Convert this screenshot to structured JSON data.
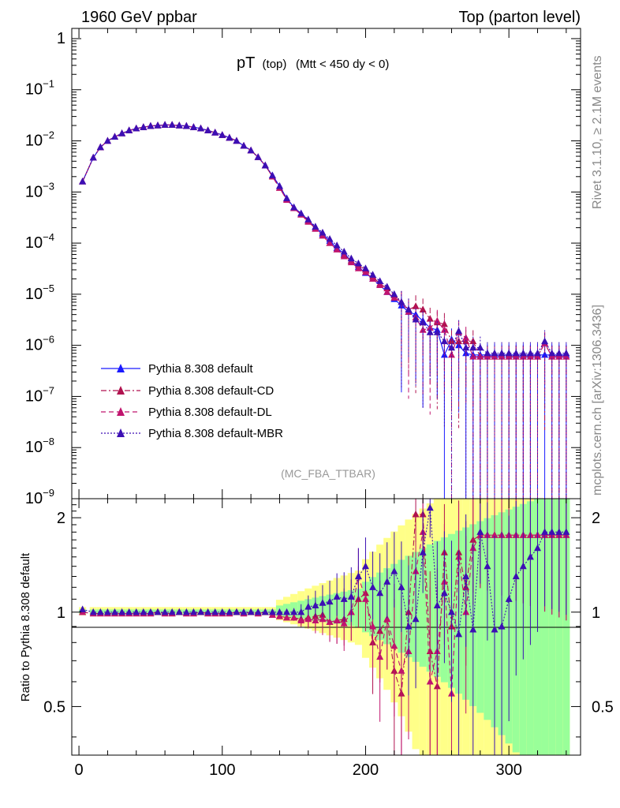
{
  "header": {
    "left": "1960 GeV ppbar",
    "right": "Top (parton level)"
  },
  "side_labels": {
    "rivet": "Rivet 3.1.10, ≥ 2.1M events",
    "mcplots": "mcplots.cern.ch [arXiv:1306.3436]"
  },
  "plot_title": {
    "main": "pT",
    "sub": "(top)",
    "cut": "(Mtt < 450 dy < 0)"
  },
  "watermark": "(MC_FBA_TTBAR)",
  "ratio_ylabel": "Ratio to Pythia 8.308 default",
  "colors": {
    "default": "#1a1aff",
    "cd": "#b0124f",
    "dl": "#c0146e",
    "mbr": "#3c0fb4",
    "band_green": "#99ff99",
    "band_yellow": "#ffff88"
  },
  "chart_data": [
    {
      "type": "line",
      "scale": "log",
      "xlim": [
        -5,
        350
      ],
      "ylim_exp": [
        -9,
        0.2
      ],
      "y_tick_exps": [
        0,
        -1,
        -2,
        -3,
        -4,
        -5,
        -6,
        -7,
        -8,
        -9
      ],
      "y_tick_labels": [
        "1",
        "10",
        "10",
        "10",
        "10",
        "10",
        "10",
        "10",
        "10",
        "10"
      ],
      "y_tick_supers": [
        "",
        "−1",
        "−2",
        "−3",
        "−4",
        "−5",
        "−6",
        "−7",
        "−8",
        "−9"
      ],
      "x": [
        2.5,
        10,
        15,
        20,
        25,
        30,
        35,
        40,
        45,
        50,
        55,
        60,
        65,
        70,
        75,
        80,
        85,
        90,
        95,
        100,
        105,
        110,
        115,
        120,
        125,
        130,
        135,
        140,
        145,
        150,
        155,
        160,
        165,
        170,
        175,
        180,
        185,
        190,
        195,
        200,
        205,
        210,
        215,
        220,
        225,
        230,
        235,
        240,
        245,
        250,
        255,
        260,
        265,
        270,
        275,
        280,
        285,
        290,
        295,
        300,
        305,
        310,
        315,
        320,
        325,
        330,
        335,
        340
      ],
      "series": [
        {
          "name": "Pythia 8.308 default",
          "key": "default",
          "dash": "",
          "values": [
            0.0016,
            0.0047,
            0.0075,
            0.01,
            0.012,
            0.014,
            0.016,
            0.0175,
            0.0185,
            0.0195,
            0.02,
            0.0205,
            0.0205,
            0.02,
            0.0195,
            0.0185,
            0.0175,
            0.016,
            0.0145,
            0.013,
            0.0115,
            0.01,
            0.008,
            0.0065,
            0.0048,
            0.0033,
            0.0021,
            0.0013,
            0.00075,
            0.0005,
            0.00038,
            0.00028,
            0.0002,
            0.00015,
            0.00011,
            8e-05,
            6.2e-05,
            4.5e-05,
            3.4e-05,
            2.6e-05,
            2e-05,
            1.5e-05,
            1.1e-05,
            8e-06,
            6e-06,
            4.5e-06,
            4e-06,
            3e-06,
            2.2e-06,
            2e-06,
            6.5e-07,
            1.3e-06,
            1e-06,
            7e-07,
            6.5e-07,
            6.5e-07,
            6.5e-07,
            6.5e-07,
            6.5e-07,
            6.5e-07,
            6.5e-07,
            6.5e-07,
            6.5e-07,
            6.5e-07,
            6.5e-07,
            6.5e-07,
            6.5e-07,
            6.5e-07
          ]
        },
        {
          "name": "Pythia 8.308 default-CD",
          "key": "cd",
          "dash": "7,3,2,3",
          "values": [
            0.0016,
            0.0047,
            0.0075,
            0.01,
            0.012,
            0.014,
            0.016,
            0.0175,
            0.0185,
            0.0195,
            0.02,
            0.0205,
            0.0205,
            0.02,
            0.0195,
            0.0185,
            0.0175,
            0.016,
            0.0145,
            0.013,
            0.0115,
            0.01,
            0.008,
            0.0065,
            0.0048,
            0.0033,
            0.002,
            0.0012,
            0.00072,
            0.00048,
            0.00036,
            0.00027,
            0.00019,
            0.00014,
            0.0001,
            7.5e-05,
            5.8e-05,
            4.5e-05,
            3.7e-05,
            3e-05,
            2.2e-05,
            1.6e-05,
            1.3e-05,
            9.5e-06,
            7e-06,
            5e-06,
            5.8e-06,
            5e-06,
            3.3e-06,
            2.8e-06,
            2.6e-06,
            1.2e-06,
            1.2e-06,
            1.2e-06,
            1.2e-06,
            6e-07,
            6e-07,
            6e-07,
            6e-07,
            6e-07,
            6e-07,
            6e-07,
            6e-07,
            6e-07,
            1.1e-06,
            6e-07,
            6e-07,
            6e-07
          ]
        },
        {
          "name": "Pythia 8.308 default-DL",
          "key": "dl",
          "dash": "6,4",
          "values": [
            0.0016,
            0.0047,
            0.0075,
            0.01,
            0.012,
            0.014,
            0.016,
            0.0175,
            0.0185,
            0.0195,
            0.02,
            0.0205,
            0.0205,
            0.02,
            0.0195,
            0.0185,
            0.0175,
            0.016,
            0.0145,
            0.013,
            0.0115,
            0.01,
            0.008,
            0.0065,
            0.0048,
            0.0033,
            0.002,
            0.0012,
            0.0007,
            0.00048,
            0.00036,
            0.00026,
            0.00019,
            0.00014,
            0.0001,
            7.5e-05,
            5.5e-05,
            4.2e-05,
            3.2e-05,
            2.7e-05,
            2e-05,
            1.5e-05,
            1.1e-05,
            8.5e-06,
            7e-06,
            4.5e-06,
            3.5e-06,
            2e-06,
            2.2e-06,
            3e-06,
            2e-06,
            6.5e-07,
            1.8e-06,
            1.4e-06,
            6e-07,
            6e-07,
            6e-07,
            6e-07,
            6e-07,
            6e-07,
            6e-07,
            6e-07,
            6e-07,
            6e-07,
            1.1e-06,
            6e-07,
            6e-07,
            6e-07
          ]
        },
        {
          "name": "Pythia 8.308 default-MBR",
          "key": "mbr",
          "dash": "2,2",
          "values": [
            0.0016,
            0.0047,
            0.0075,
            0.01,
            0.012,
            0.014,
            0.016,
            0.0175,
            0.0185,
            0.0195,
            0.02,
            0.0205,
            0.0205,
            0.02,
            0.0195,
            0.0185,
            0.0175,
            0.016,
            0.0145,
            0.013,
            0.0115,
            0.01,
            0.008,
            0.0065,
            0.0048,
            0.0033,
            0.0021,
            0.0013,
            0.00075,
            0.0005,
            0.00038,
            0.00029,
            0.00021,
            0.00016,
            0.00012,
            9e-05,
            6.8e-05,
            5e-05,
            4e-05,
            3.2e-05,
            2.4e-05,
            1.8e-05,
            1.4e-05,
            1e-05,
            7e-06,
            5e-06,
            3.2e-06,
            2.8e-06,
            1.8e-06,
            1.8e-06,
            1.2e-06,
            9e-07,
            1.9e-06,
            9e-07,
            9e-07,
            9e-07,
            7e-07,
            7e-07,
            7e-07,
            7e-07,
            7e-07,
            7e-07,
            7e-07,
            7e-07,
            1.2e-06,
            7e-07,
            7e-07,
            7e-07
          ]
        }
      ]
    },
    {
      "type": "line",
      "ylabel": "Ratio to Pythia 8.308 default",
      "xlim": [
        -5,
        350
      ],
      "ylim": [
        0.35,
        2.3
      ],
      "x_ticks": [
        0,
        100,
        200,
        300
      ],
      "y_ticks": [
        0.5,
        1,
        2
      ],
      "x": [
        2.5,
        10,
        15,
        20,
        25,
        30,
        35,
        40,
        45,
        50,
        55,
        60,
        65,
        70,
        75,
        80,
        85,
        90,
        95,
        100,
        105,
        110,
        115,
        120,
        125,
        130,
        135,
        140,
        145,
        150,
        155,
        160,
        165,
        170,
        175,
        180,
        185,
        190,
        195,
        200,
        205,
        210,
        215,
        220,
        225,
        230,
        235,
        240,
        245,
        250,
        255,
        260,
        265,
        270,
        275,
        280,
        285,
        290,
        295,
        300,
        305,
        310,
        315,
        320,
        325,
        330,
        335,
        340
      ],
      "series": [
        {
          "name": "Pythia 8.308 default-CD",
          "key": "cd",
          "values": [
            1.0,
            0.99,
            0.99,
            0.99,
            0.99,
            0.99,
            0.99,
            0.99,
            0.99,
            0.99,
            1.0,
            0.99,
            0.99,
            1.0,
            0.99,
            0.99,
            1.0,
            0.99,
            0.99,
            0.99,
            0.99,
            1.0,
            0.99,
            1.0,
            0.99,
            1.0,
            0.98,
            0.97,
            0.96,
            0.96,
            0.95,
            0.96,
            0.97,
            0.98,
            0.93,
            0.94,
            0.95,
            1.0,
            1.1,
            1.15,
            0.8,
            0.87,
            0.95,
            0.65,
            0.55,
            1.0,
            2.05,
            2.05,
            0.75,
            0.58,
            1.55,
            0.9,
            1.55,
            1.2,
            1.7,
            1.76,
            1.76,
            1.76,
            1.76,
            1.76,
            1.76,
            1.76,
            1.76,
            1.76,
            1.76,
            1.76,
            1.76,
            1.76
          ]
        },
        {
          "name": "Pythia 8.308 default-DL",
          "key": "dl",
          "values": [
            1.0,
            0.99,
            0.99,
            0.99,
            0.99,
            0.99,
            0.99,
            0.99,
            0.99,
            0.99,
            1.0,
            0.99,
            0.99,
            1.0,
            0.99,
            0.99,
            1.0,
            0.99,
            0.99,
            0.99,
            0.99,
            1.0,
            0.99,
            1.0,
            0.99,
            1.0,
            0.98,
            0.97,
            0.96,
            0.96,
            0.94,
            0.95,
            0.94,
            0.95,
            0.93,
            0.94,
            0.92,
            1.0,
            1.3,
            1.1,
            0.9,
            0.72,
            0.95,
            0.78,
            0.65,
            0.75,
            1.35,
            1.8,
            0.6,
            0.75,
            1.25,
            0.55,
            1.5,
            1.0,
            1.6,
            1.76,
            1.76,
            1.76,
            1.76,
            1.76,
            1.76,
            1.76,
            1.76,
            1.76,
            1.76,
            1.76,
            1.76,
            1.76
          ]
        },
        {
          "name": "Pythia 8.308 default-MBR",
          "key": "mbr",
          "values": [
            1.02,
            1.0,
            1.0,
            1.0,
            1.0,
            1.0,
            1.0,
            1.0,
            1.0,
            1.0,
            1.0,
            1.0,
            1.0,
            1.0,
            1.0,
            1.0,
            1.0,
            1.0,
            1.0,
            1.0,
            1.0,
            1.0,
            1.0,
            1.0,
            1.0,
            1.0,
            1.0,
            1.0,
            1.0,
            1.0,
            1.0,
            1.04,
            1.05,
            1.07,
            1.08,
            1.12,
            1.1,
            1.12,
            1.3,
            1.4,
            1.2,
            1.15,
            1.25,
            1.35,
            1.2,
            0.9,
            0.95,
            1.55,
            2.15,
            1.05,
            1.15,
            1.0,
            0.85,
            1.3,
            0.88,
            1.8,
            1.4,
            0.88,
            0.9,
            1.1,
            1.3,
            1.4,
            1.5,
            1.6,
            1.8,
            1.8,
            1.8,
            1.8
          ]
        }
      ]
    }
  ]
}
